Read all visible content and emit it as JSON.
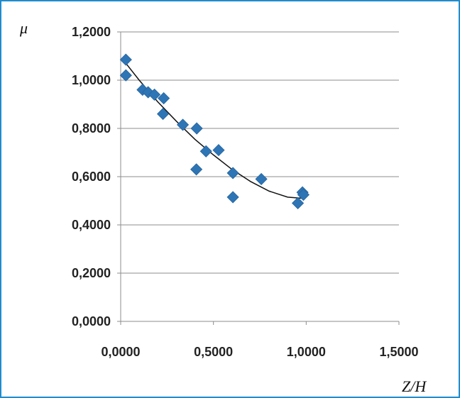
{
  "chart_data": {
    "type": "scatter",
    "title": "",
    "xlabel": "Z/H",
    "ylabel": "μ",
    "xlim": [
      0,
      1.5
    ],
    "ylim": [
      0,
      1.2
    ],
    "x_ticks": [
      0,
      0.5,
      1.0,
      1.5
    ],
    "y_ticks": [
      0,
      0.2,
      0.4,
      0.6,
      0.8,
      1.0,
      1.2
    ],
    "x_tick_labels": [
      "0,0000",
      "0,5000",
      "1,0000",
      "1,5000"
    ],
    "y_tick_labels": [
      "0,0000",
      "0,2000",
      "0,4000",
      "0,6000",
      "0,8000",
      "1,0000",
      "1,2000"
    ],
    "grid": "horizontal",
    "legend": "none",
    "marker_color": "#2e75b6",
    "trendline_color": "#111111",
    "frame_color": "#1f8ccf",
    "series": [
      {
        "marker": "diamond",
        "points": [
          {
            "x": 0.028,
            "y": 1.085
          },
          {
            "x": 0.028,
            "y": 1.02
          },
          {
            "x": 0.118,
            "y": 0.96
          },
          {
            "x": 0.148,
            "y": 0.95
          },
          {
            "x": 0.182,
            "y": 0.94
          },
          {
            "x": 0.232,
            "y": 0.925
          },
          {
            "x": 0.228,
            "y": 0.86
          },
          {
            "x": 0.335,
            "y": 0.815
          },
          {
            "x": 0.41,
            "y": 0.8
          },
          {
            "x": 0.46,
            "y": 0.705
          },
          {
            "x": 0.528,
            "y": 0.71
          },
          {
            "x": 0.408,
            "y": 0.63
          },
          {
            "x": 0.605,
            "y": 0.615
          },
          {
            "x": 0.605,
            "y": 0.515
          },
          {
            "x": 0.758,
            "y": 0.59
          },
          {
            "x": 0.955,
            "y": 0.49
          },
          {
            "x": 0.98,
            "y": 0.535
          },
          {
            "x": 0.985,
            "y": 0.525
          }
        ]
      }
    ],
    "trendline": {
      "type": "polynomial",
      "points": [
        {
          "x": 0.028,
          "y": 1.07
        },
        {
          "x": 0.1,
          "y": 1.0
        },
        {
          "x": 0.2,
          "y": 0.91
        },
        {
          "x": 0.3,
          "y": 0.83
        },
        {
          "x": 0.4,
          "y": 0.755
        },
        {
          "x": 0.5,
          "y": 0.69
        },
        {
          "x": 0.6,
          "y": 0.63
        },
        {
          "x": 0.7,
          "y": 0.58
        },
        {
          "x": 0.8,
          "y": 0.54
        },
        {
          "x": 0.9,
          "y": 0.515
        },
        {
          "x": 0.985,
          "y": 0.51
        }
      ]
    }
  }
}
